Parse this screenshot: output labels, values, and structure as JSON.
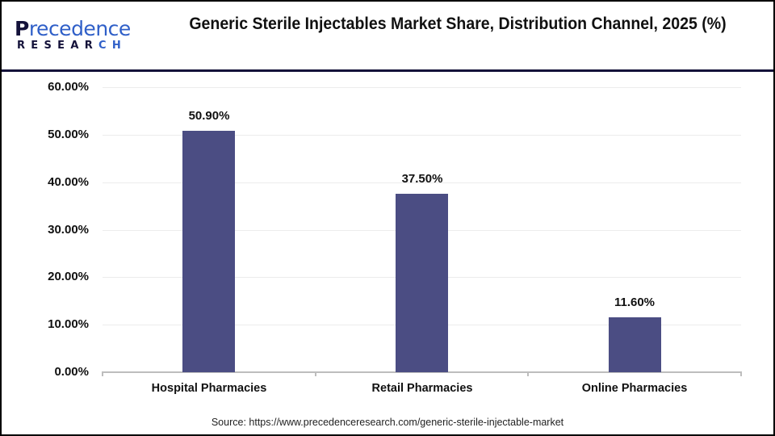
{
  "header": {
    "logo": {
      "top_first": "P",
      "top_rest": "recedence",
      "bottom_main": "RESEAR",
      "bottom_accent": "CH"
    },
    "title": "Generic Sterile Injectables Market Share, Distribution Channel, 2025 (%)"
  },
  "colors": {
    "bar": "#4b4d83",
    "header_rule": "#14123a",
    "logo_dark": "#14123a",
    "logo_blue": "#2f5fc8",
    "grid": "#ececec",
    "axis": "#bdbdbd"
  },
  "chart_data": {
    "type": "bar",
    "title": "Generic Sterile Injectables Market Share, Distribution Channel, 2025 (%)",
    "xlabel": "",
    "ylabel": "",
    "categories": [
      "Hospital Pharmacies",
      "Retail Pharmacies",
      "Online Pharmacies"
    ],
    "values": [
      50.9,
      37.5,
      11.6
    ],
    "value_labels": [
      "50.90%",
      "37.50%",
      "11.60%"
    ],
    "ylim": [
      0,
      60
    ],
    "yticks": [
      "0.00%",
      "10.00%",
      "20.00%",
      "30.00%",
      "40.00%",
      "50.00%",
      "60.00%"
    ],
    "grid": true,
    "legend": "none"
  },
  "footer": {
    "source": "Source: https://www.precedenceresearch.com/generic-sterile-injectable-market"
  }
}
